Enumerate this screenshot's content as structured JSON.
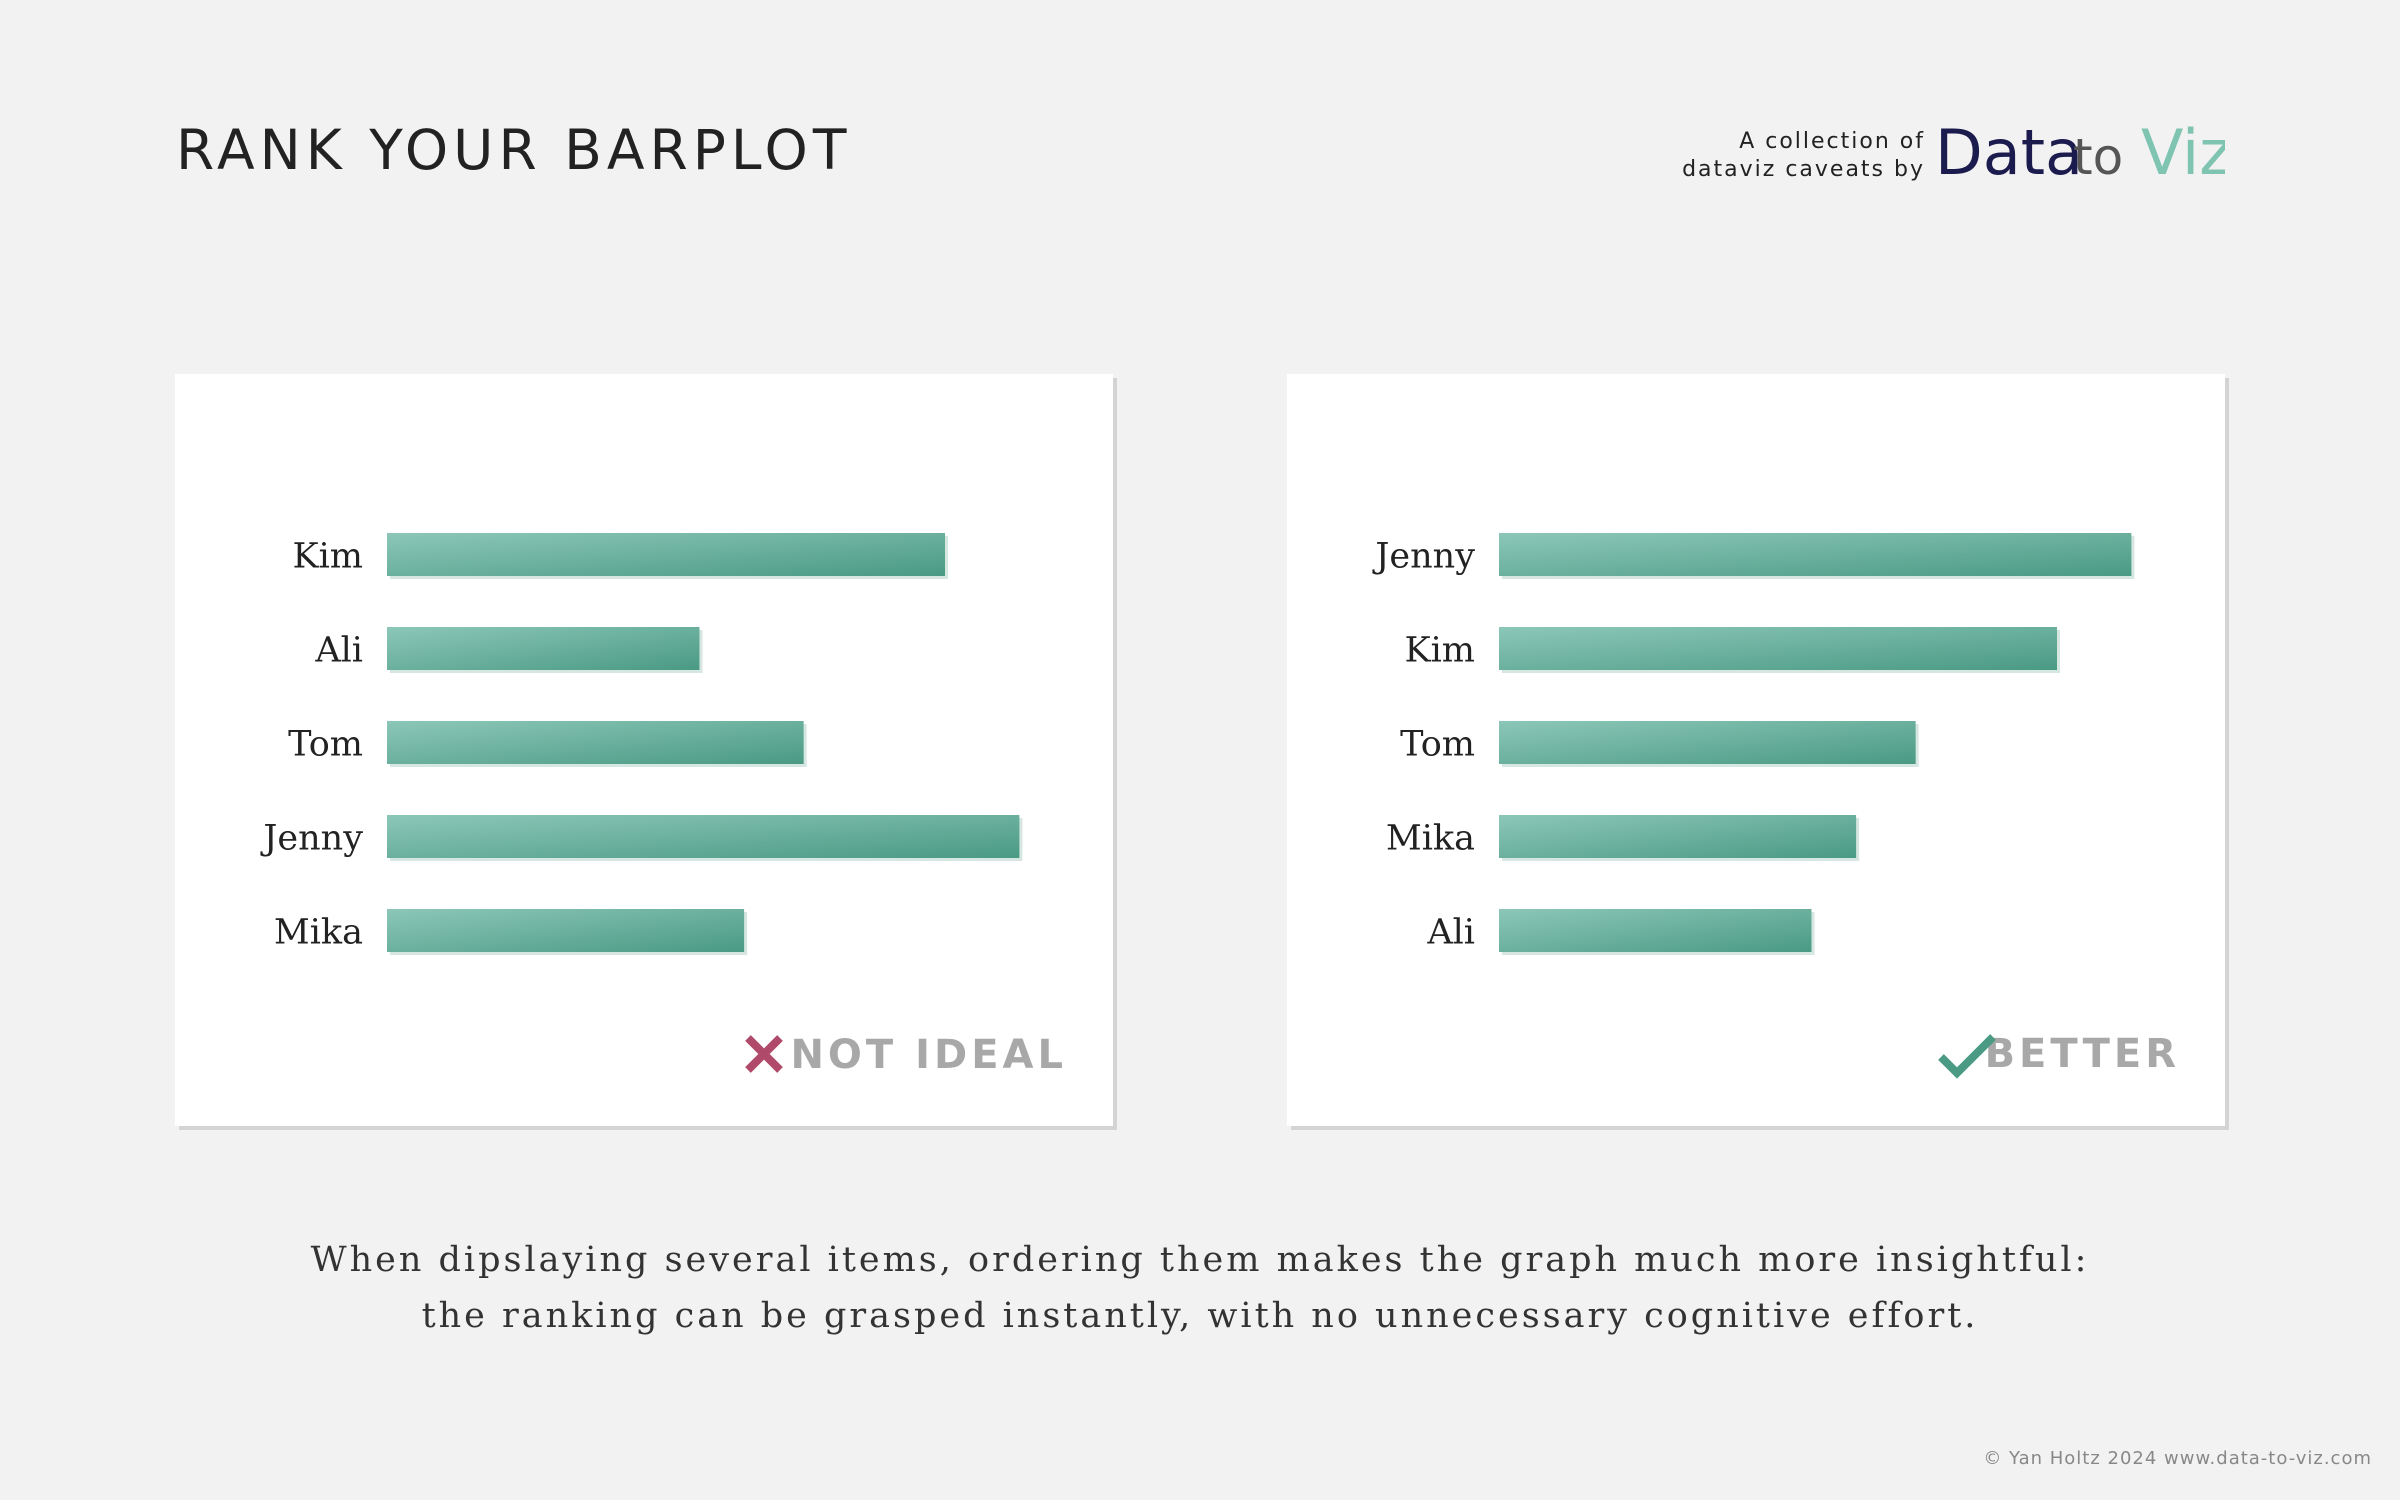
{
  "header": {
    "title": "RANK YOUR BARPLOT",
    "tagline_line1": "A collection of",
    "tagline_line2": "dataviz caveats by",
    "logo_text": [
      "Data",
      "to",
      "Viz"
    ]
  },
  "colors": {
    "background": "#f2f2f2",
    "bar_light": "#8cc7b8",
    "bar_dark": "#4a9a84",
    "cross": "#b04a6a",
    "check": "#4a9a84",
    "logo_data": "#1c1b4e",
    "logo_to": "#555555",
    "logo_viz": "#7ec4b0"
  },
  "panels": {
    "left": {
      "verdict": "NOT IDEAL",
      "verdict_icon": "cross-icon"
    },
    "right": {
      "verdict": "BETTER",
      "verdict_icon": "check-icon"
    }
  },
  "chart_data": [
    {
      "type": "bar",
      "orientation": "horizontal",
      "categories": [
        "Kim",
        "Ali",
        "Tom",
        "Jenny",
        "Mika"
      ],
      "values": [
        75,
        42,
        56,
        85,
        48
      ],
      "xlim": [
        0,
        100
      ],
      "title": "",
      "xlabel": "",
      "ylabel": "",
      "grid": false
    },
    {
      "type": "bar",
      "orientation": "horizontal",
      "categories": [
        "Jenny",
        "Kim",
        "Tom",
        "Mika",
        "Ali"
      ],
      "values": [
        85,
        75,
        56,
        48,
        42
      ],
      "xlim": [
        0,
        100
      ],
      "title": "",
      "xlabel": "",
      "ylabel": "",
      "grid": false
    }
  ],
  "caption": {
    "line1": "When dipslaying several items, ordering them makes the graph much more insightful:",
    "line2": "the ranking can be grasped instantly, with no unnecessary cognitive effort."
  },
  "footer": {
    "credit": "© Yan Holtz 2024 www.data-to-viz.com"
  }
}
